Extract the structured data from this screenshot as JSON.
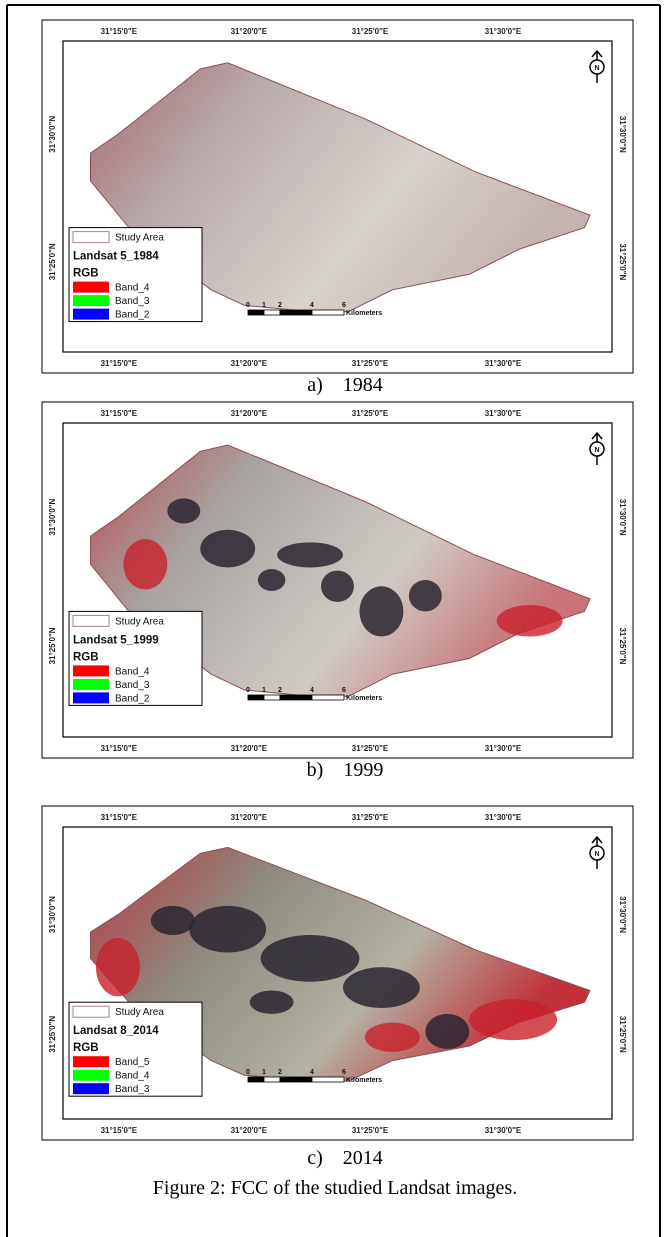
{
  "panels": [
    {
      "top_labels": [
        "31°15'0\"E",
        "31°20'0\"E",
        "31°25'0\"E",
        "31°30'0\"E"
      ],
      "bottom_labels": [
        "31°15'0\"E",
        "31°20'0\"E",
        "31°25'0\"E",
        "31°30'0\"E"
      ],
      "left_labels": [
        "31°30'0\"N",
        "31°25'0\"N"
      ],
      "right_labels": [
        "31°30'0\"N",
        "31°25'0\"N"
      ],
      "north": "N",
      "legend": {
        "study_area": "Study Area",
        "title": "Landsat 5_1984",
        "rgb": "RGB",
        "bands": [
          "Band_4",
          "Band_3",
          "Band_2"
        ]
      },
      "scale": {
        "ticks": [
          "0",
          "1",
          "2",
          "4",
          "6"
        ],
        "unit": "Kilometers"
      },
      "caption": "a)    1984"
    },
    {
      "top_labels": [
        "31°15'0\"E",
        "31°20'0\"E",
        "31°25'0\"E",
        "31°30'0\"E"
      ],
      "bottom_labels": [
        "31°15'0\"E",
        "31°20'0\"E",
        "31°25'0\"E",
        "31°30'0\"E"
      ],
      "left_labels": [
        "31°30'0\"N",
        "31°25'0\"N"
      ],
      "right_labels": [
        "31°30'0\"N",
        "31°25'0\"N"
      ],
      "north": "N",
      "legend": {
        "study_area": "Study Area",
        "title": "Landsat 5_1999",
        "rgb": "RGB",
        "bands": [
          "Band_4",
          "Band_3",
          "Band_2"
        ]
      },
      "scale": {
        "ticks": [
          "0",
          "1",
          "2",
          "4",
          "6"
        ],
        "unit": "Kilometers"
      },
      "caption": "b)    1999"
    },
    {
      "top_labels": [
        "31°15'0\"E",
        "31°20'0\"E",
        "31°25'0\"E",
        "31°30'0\"E"
      ],
      "bottom_labels": [
        "31°15'0\"E",
        "31°20'0\"E",
        "31°25'0\"E",
        "31°30'0\"E"
      ],
      "left_labels": [
        "31°30'0\"N",
        "31°25'0\"N"
      ],
      "right_labels": [
        "31°30'0\"N",
        "31°25'0\"N"
      ],
      "north": "N",
      "legend": {
        "study_area": "Study Area",
        "title": "Landsat 8_2014",
        "rgb": "RGB",
        "bands": [
          "Band_5",
          "Band_4",
          "Band_3"
        ]
      },
      "scale": {
        "ticks": [
          "0",
          "1",
          "2",
          "4",
          "6"
        ],
        "unit": "Kilometers"
      },
      "caption": "c)    2014"
    }
  ],
  "figure_caption": "Figure 2: FCC of the studied Landsat images."
}
